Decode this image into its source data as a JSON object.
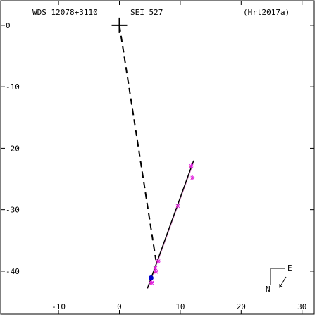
{
  "header": {
    "wds_id": "WDS 12078+3110",
    "discoverer": "SEI 527",
    "reference": "(Hrt2017a)"
  },
  "compass": {
    "north_label": "N",
    "east_label": "E"
  },
  "colors": {
    "axis": "#000000",
    "orbit_line": "#000000",
    "fit_line": "#e8a0d8",
    "observations": "#e020e0",
    "residual": "#e00000",
    "current_position": "#0000cc"
  },
  "chart_data": {
    "type": "scatter",
    "title": "",
    "xlabel": "",
    "ylabel": "",
    "xlim": [
      -19.5,
      32
    ],
    "ylim": [
      -47,
      4
    ],
    "x_ticks": [
      -10,
      0,
      10,
      20,
      30
    ],
    "y_ticks": [
      0,
      -10,
      -20,
      -30,
      -40
    ],
    "x_tick_labels": [
      "-10",
      "0",
      "10",
      "20",
      "30"
    ],
    "y_tick_labels": [
      "0",
      "-10",
      "-20",
      "-30",
      "-40"
    ],
    "grid": false,
    "primary_star": [
      0,
      0
    ],
    "separation_line": {
      "from": [
        0,
        0
      ],
      "to": [
        6.0,
        -38.2
      ]
    },
    "linear_fit": {
      "from": [
        4.6,
        -42.8
      ],
      "to": [
        12.2,
        -22.0
      ]
    },
    "observations": [
      {
        "x": 11.8,
        "y": -22.9
      },
      {
        "x": 12.0,
        "y": -24.8
      },
      {
        "x": 9.6,
        "y": -29.4
      },
      {
        "x": 6.4,
        "y": -38.4
      },
      {
        "x": 5.9,
        "y": -39.5
      },
      {
        "x": 6.0,
        "y": -40.1
      },
      {
        "x": 5.3,
        "y": -41.9
      }
    ],
    "current_position": {
      "x": 5.2,
      "y": -41.1
    }
  }
}
